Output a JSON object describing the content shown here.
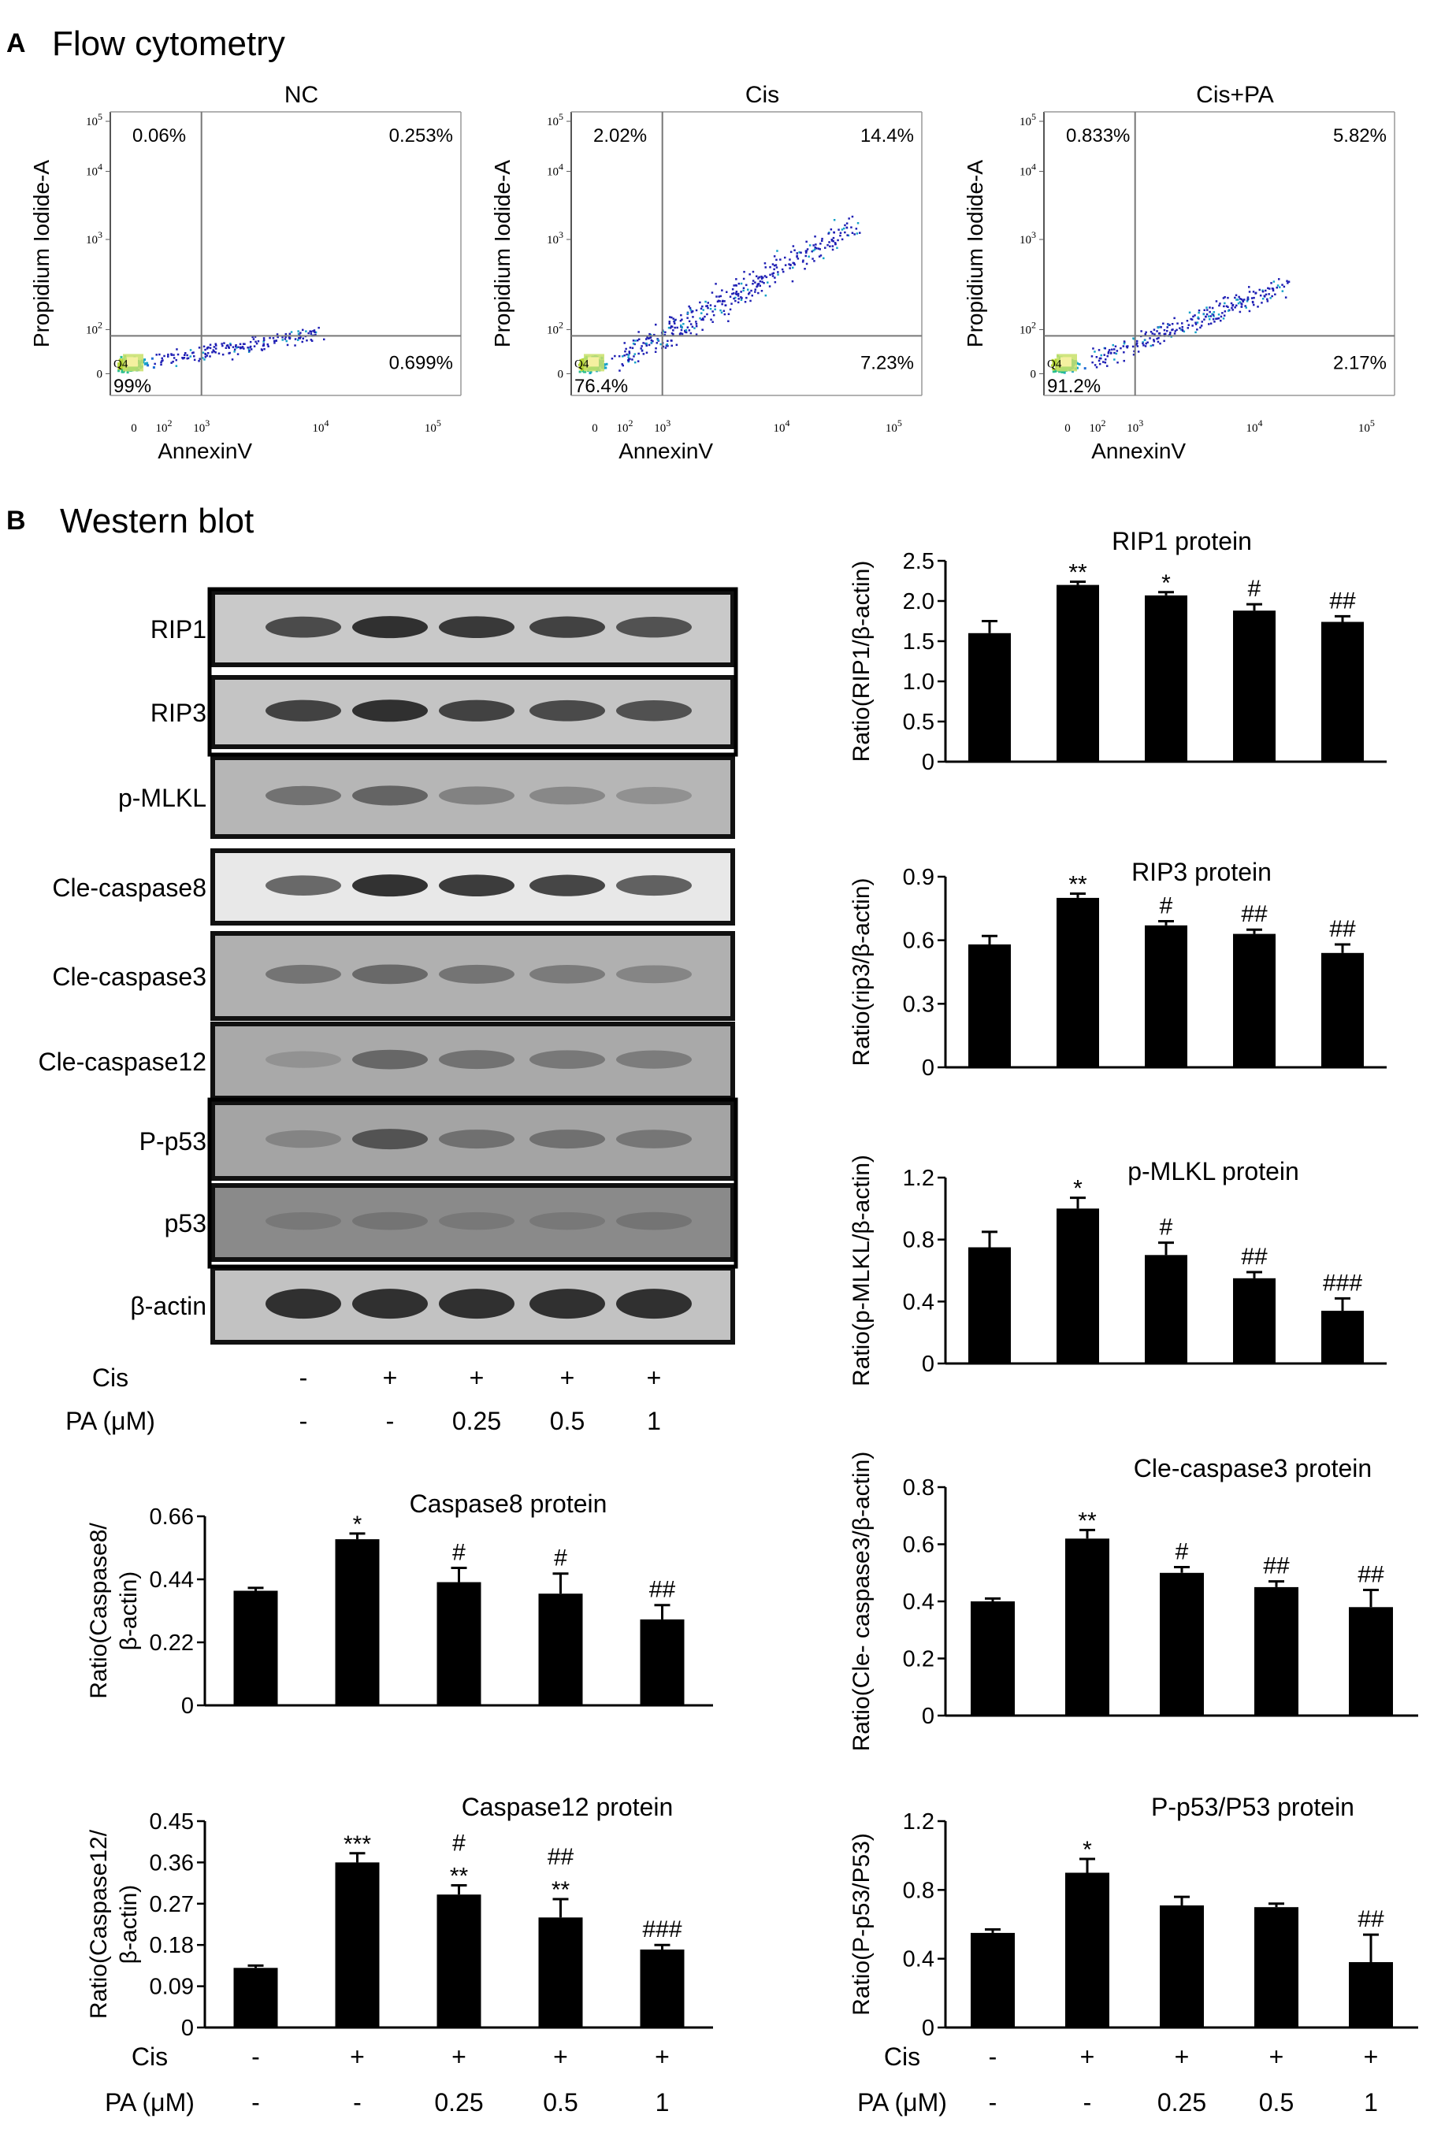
{
  "panelA": {
    "letter": "A",
    "title": "Flow cytometry",
    "x_axis_label": "AnnexinV",
    "y_axis_label": "Propidium Iodide-A",
    "x_tick_labels": [
      "0",
      "10^2",
      "10^3",
      "10^4",
      "10^5"
    ],
    "y_tick_labels": [
      "0",
      "10^2",
      "10^3",
      "10^4",
      "10^5"
    ],
    "quadrant_tag": "Q4",
    "plots": [
      {
        "name": "NC",
        "q_upper_left": "0.06%",
        "q_upper_right": "0.253%",
        "q_lower_right": "0.699%",
        "q_lower_left": "99%",
        "spread": 0.2
      },
      {
        "name": "Cis",
        "q_upper_left": "2.02%",
        "q_upper_right": "14.4%",
        "q_lower_right": "7.23%",
        "q_lower_left": "76.4%",
        "spread": 1.0
      },
      {
        "name": "Cis+PA",
        "q_upper_left": "0.833%",
        "q_upper_right": "5.82%",
        "q_lower_right": "2.17%",
        "q_lower_left": "91.2%",
        "spread": 0.55
      }
    ]
  },
  "panelB": {
    "letter": "B",
    "title": "Western blot",
    "blot_rows": [
      "RIP1",
      "RIP3",
      "p-MLKL",
      "Cle-caspase8",
      "Cle-caspase3",
      "Cle-caspase12",
      "P-p53",
      "p53",
      "β-actin"
    ],
    "conditions": {
      "cis_label": "Cis",
      "pa_label": "PA (μM)",
      "cis": [
        "-",
        "+",
        "+",
        "+",
        "+"
      ],
      "pa": [
        "-",
        "-",
        "0.25",
        "0.5",
        "1"
      ]
    }
  },
  "chart_data": [
    {
      "id": "rip1",
      "type": "bar",
      "title": "RIP1 protein",
      "ylabel": "Ratio(RIP1/β-actin)",
      "ylim": [
        0,
        2.5
      ],
      "yticks": [
        "0",
        "0.5",
        "1.0",
        "1.5",
        "2.0",
        "2.5"
      ],
      "values": [
        1.6,
        2.2,
        2.07,
        1.88,
        1.74
      ],
      "errors": [
        0.15,
        0.04,
        0.04,
        0.08,
        0.07
      ],
      "significance": [
        "",
        "**",
        "*",
        "#",
        "##"
      ]
    },
    {
      "id": "rip3",
      "type": "bar",
      "title": "RIP3 protein",
      "ylabel": "Ratio(rip3/β-actin)",
      "ylim": [
        0,
        0.9
      ],
      "yticks": [
        "0",
        "0.3",
        "0.6",
        "0.9"
      ],
      "values": [
        0.58,
        0.8,
        0.67,
        0.63,
        0.54
      ],
      "errors": [
        0.04,
        0.02,
        0.02,
        0.02,
        0.04
      ],
      "significance": [
        "",
        "**",
        "#",
        "##",
        "##"
      ]
    },
    {
      "id": "pmlkl",
      "type": "bar",
      "title": "p-MLKL protein",
      "ylabel": "Ratio(p-MLKL/β-actin)",
      "ylim": [
        0,
        1.2
      ],
      "yticks": [
        "0",
        "0.4",
        "0.8",
        "1.2"
      ],
      "values": [
        0.75,
        1.0,
        0.7,
        0.55,
        0.34
      ],
      "errors": [
        0.1,
        0.07,
        0.08,
        0.04,
        0.08
      ],
      "significance": [
        "",
        "*",
        "#",
        "##",
        "###"
      ]
    },
    {
      "id": "casp8",
      "type": "bar",
      "title": "Caspase8 protein",
      "ylabel": "Ratio(Caspase8/ β-actin)",
      "ylim": [
        0,
        0.66
      ],
      "yticks": [
        "0",
        "0.22",
        "0.44",
        "0.66"
      ],
      "values": [
        0.4,
        0.58,
        0.43,
        0.39,
        0.3
      ],
      "errors": [
        0.01,
        0.02,
        0.05,
        0.07,
        0.05
      ],
      "significance": [
        "",
        "*",
        "#",
        "#",
        "##"
      ]
    },
    {
      "id": "casp3",
      "type": "bar",
      "title": "Cle-caspase3 protein",
      "ylabel": "Ratio(Cle- caspase3/β-actin)",
      "ylim": [
        0,
        0.8
      ],
      "yticks": [
        "0",
        "0.2",
        "0.4",
        "0.6",
        "0.8"
      ],
      "values": [
        0.4,
        0.62,
        0.5,
        0.45,
        0.38
      ],
      "errors": [
        0.01,
        0.03,
        0.02,
        0.02,
        0.06
      ],
      "significance": [
        "",
        "**",
        "#",
        "##",
        "##"
      ]
    },
    {
      "id": "casp12",
      "type": "bar",
      "title": "Caspase12 protein",
      "ylabel": "Ratio(Caspase12/ β-actin)",
      "ylim": [
        0,
        0.45
      ],
      "yticks": [
        "0",
        "0.09",
        "0.18",
        "0.27",
        "0.36",
        "0.45"
      ],
      "values": [
        0.13,
        0.36,
        0.29,
        0.24,
        0.17
      ],
      "errors": [
        0.005,
        0.02,
        0.02,
        0.04,
        0.01
      ],
      "significance": [
        "",
        "***",
        "#\n**",
        "##\n**",
        "###"
      ]
    },
    {
      "id": "pp53",
      "type": "bar",
      "title": "P-p53/P53 protein",
      "ylabel": "Ratio(P-p53/P53)",
      "ylim": [
        0,
        1.2
      ],
      "yticks": [
        "0",
        "0.4",
        "0.8",
        "1.2"
      ],
      "values": [
        0.55,
        0.9,
        0.71,
        0.7,
        0.38
      ],
      "errors": [
        0.02,
        0.08,
        0.05,
        0.02,
        0.16
      ],
      "significance": [
        "",
        "*",
        "",
        "",
        "##"
      ]
    }
  ]
}
